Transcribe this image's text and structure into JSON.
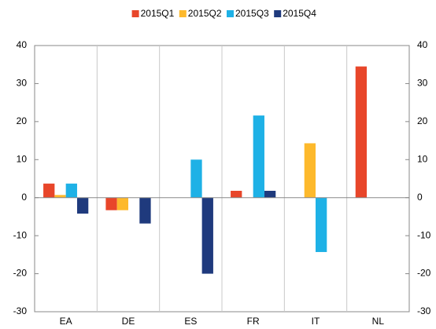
{
  "chart_data": {
    "type": "bar",
    "categories": [
      "EA",
      "DE",
      "ES",
      "FR",
      "IT",
      "NL"
    ],
    "series": [
      {
        "name": "2015Q1",
        "color": "#e8462a",
        "values": [
          3.7,
          -3.3,
          null,
          1.8,
          null,
          34.5
        ]
      },
      {
        "name": "2015Q2",
        "color": "#fdb92c",
        "values": [
          0.7,
          -3.3,
          null,
          null,
          14.3,
          null
        ]
      },
      {
        "name": "2015Q3",
        "color": "#1eb1e6",
        "values": [
          3.7,
          null,
          10,
          21.6,
          -14.3,
          null
        ]
      },
      {
        "name": "2015Q4",
        "color": "#1f3a7d",
        "values": [
          -4.2,
          -6.8,
          -20,
          1.8,
          null,
          null
        ]
      }
    ],
    "ylim": [
      -30,
      40
    ],
    "yticks": [
      -30,
      -20,
      -10,
      0,
      10,
      20,
      30,
      40
    ],
    "right_axis_mirror": true,
    "vertical_grid": true,
    "legend": "top"
  }
}
